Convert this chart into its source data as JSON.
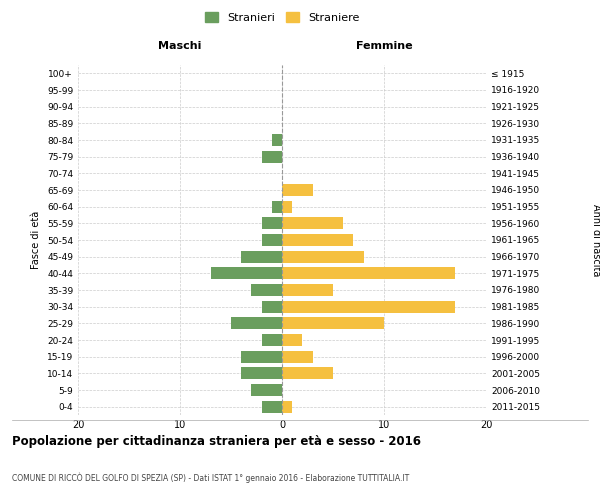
{
  "age_groups": [
    "0-4",
    "5-9",
    "10-14",
    "15-19",
    "20-24",
    "25-29",
    "30-34",
    "35-39",
    "40-44",
    "45-49",
    "50-54",
    "55-59",
    "60-64",
    "65-69",
    "70-74",
    "75-79",
    "80-84",
    "85-89",
    "90-94",
    "95-99",
    "100+"
  ],
  "birth_years": [
    "2011-2015",
    "2006-2010",
    "2001-2005",
    "1996-2000",
    "1991-1995",
    "1986-1990",
    "1981-1985",
    "1976-1980",
    "1971-1975",
    "1966-1970",
    "1961-1965",
    "1956-1960",
    "1951-1955",
    "1946-1950",
    "1941-1945",
    "1936-1940",
    "1931-1935",
    "1926-1930",
    "1921-1925",
    "1916-1920",
    "≤ 1915"
  ],
  "maschi": [
    2,
    3,
    4,
    4,
    2,
    5,
    2,
    3,
    7,
    4,
    2,
    2,
    1,
    0,
    0,
    2,
    1,
    0,
    0,
    0,
    0
  ],
  "femmine": [
    1,
    0,
    5,
    3,
    2,
    10,
    17,
    5,
    17,
    8,
    7,
    6,
    1,
    3,
    0,
    0,
    0,
    0,
    0,
    0,
    0
  ],
  "maschi_color": "#6a9e5e",
  "femmine_color": "#f5c040",
  "center_line_color": "#999999",
  "grid_color": "#cccccc",
  "background_color": "#ffffff",
  "title": "Popolazione per cittadinanza straniera per età e sesso - 2016",
  "subtitle": "COMUNE DI RICCÒ DEL GOLFO DI SPEZIA (SP) - Dati ISTAT 1° gennaio 2016 - Elaborazione TUTTITALIA.IT",
  "ylabel_left": "Fasce di età",
  "ylabel_right": "Anni di nascita",
  "xlabel_left": "Maschi",
  "xlabel_right": "Femmine",
  "legend_stranieri": "Stranieri",
  "legend_straniere": "Straniere",
  "xlim": 20,
  "figsize": [
    6.0,
    5.0
  ],
  "dpi": 100
}
